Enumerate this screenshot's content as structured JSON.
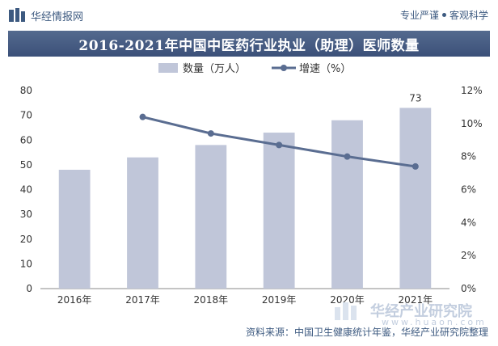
{
  "header": {
    "brand": "华经情报网",
    "tagline_left": "专业严谨",
    "tagline_right": "客观科学"
  },
  "chart_data": {
    "type": "bar+line",
    "title": "2016-2021年中国中医药行业执业（助理）医师数量",
    "categories": [
      "2016年",
      "2017年",
      "2018年",
      "2019年",
      "2020年",
      "2021年"
    ],
    "series": [
      {
        "name": "数量（万人）",
        "kind": "bar",
        "axis": "left",
        "values": [
          48,
          53,
          58,
          63,
          68,
          73
        ],
        "color": "#c0c6d9"
      },
      {
        "name": "增速（%）",
        "kind": "line",
        "axis": "right",
        "values": [
          null,
          10.4,
          9.4,
          8.7,
          8.0,
          7.4
        ],
        "color": "#5a6d91"
      }
    ],
    "data_labels": [
      {
        "category": "2021年",
        "value": "73"
      }
    ],
    "y_left": {
      "min": 0,
      "max": 80,
      "step": 10,
      "ticks": [
        "0",
        "10",
        "20",
        "30",
        "40",
        "50",
        "60",
        "70",
        "80"
      ]
    },
    "y_right": {
      "min": 0,
      "max": 12,
      "step": 2,
      "ticks": [
        "0%",
        "2%",
        "4%",
        "6%",
        "8%",
        "10%",
        "12%"
      ]
    },
    "legend_position": "top-center",
    "grid": false
  },
  "footer": {
    "source": "资料来源：中国卫生健康统计年鉴，华经产业研究院整理",
    "watermark_brand": "华经产业研究院",
    "watermark_url": "www.huaon.com"
  }
}
